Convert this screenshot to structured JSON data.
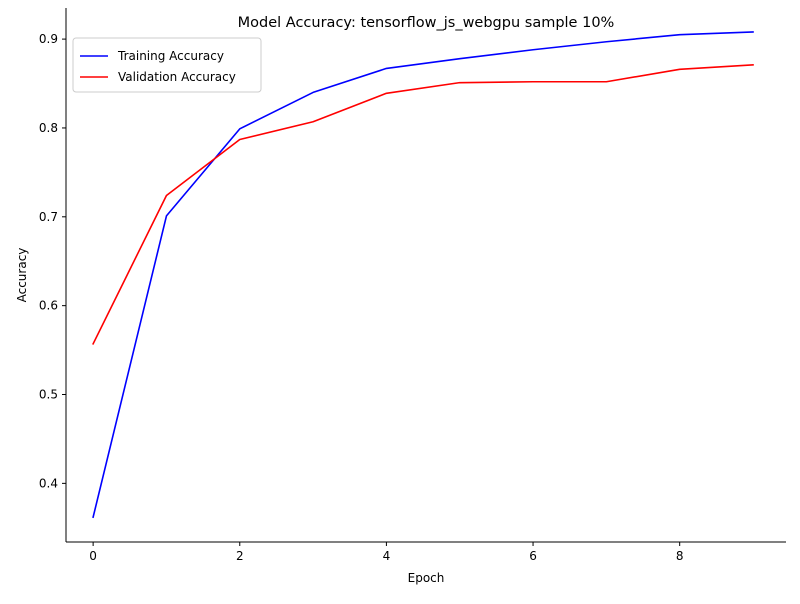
{
  "chart_data": {
    "type": "line",
    "title": "Model Accuracy: tensorflow_js_webgpu sample 10%",
    "xlabel": "Epoch",
    "ylabel": "Accuracy",
    "x": [
      0,
      1,
      2,
      3,
      4,
      5,
      6,
      7,
      8,
      9
    ],
    "xlim": [
      -0.37,
      9.45
    ],
    "ylim": [
      0.334,
      0.935
    ],
    "xticks": [
      0,
      2,
      4,
      6,
      8
    ],
    "yticks": [
      0.4,
      0.5,
      0.6,
      0.7,
      0.8,
      0.9
    ],
    "xtick_labels": [
      "0",
      "2",
      "4",
      "6",
      "8"
    ],
    "ytick_labels": [
      "0.4",
      "0.5",
      "0.6",
      "0.7",
      "0.8",
      "0.9"
    ],
    "grid": false,
    "legend_position": "upper-left",
    "series": [
      {
        "name": "Training Accuracy",
        "color": "#0000ff",
        "values": [
          0.362,
          0.701,
          0.799,
          0.84,
          0.867,
          0.878,
          0.888,
          0.897,
          0.905,
          0.908
        ]
      },
      {
        "name": "Validation Accuracy",
        "color": "#ff0000",
        "values": [
          0.557,
          0.724,
          0.787,
          0.807,
          0.839,
          0.851,
          0.852,
          0.852,
          0.866,
          0.871
        ]
      }
    ]
  }
}
